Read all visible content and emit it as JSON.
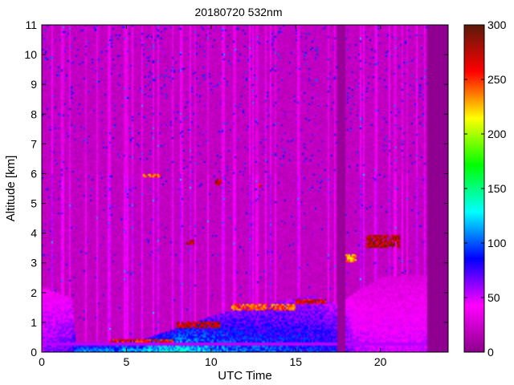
{
  "chart_data": {
    "type": "heatmap",
    "title": "20180720 532nm",
    "xlabel": "UTC Time",
    "ylabel": "Altitude [km]",
    "xlim": [
      0,
      24
    ],
    "ylim": [
      0,
      11
    ],
    "x_ticks": [
      0,
      5,
      10,
      15,
      20
    ],
    "y_ticks": [
      0,
      1,
      2,
      3,
      4,
      5,
      6,
      7,
      8,
      9,
      10,
      11
    ],
    "colorbar": {
      "range": [
        0,
        300
      ],
      "ticks": [
        0,
        50,
        100,
        150,
        200,
        250,
        300
      ],
      "colors": [
        "#8b008b",
        "#ff00ff",
        "#0000ff",
        "#00ffff",
        "#00ff00",
        "#ffff00",
        "#ff0000",
        "#5a1a0a"
      ]
    },
    "layers": {
      "background_value": 20,
      "surface_band_value": 55,
      "boundary_layer": [
        {
          "x": 0.0,
          "top": 2.2,
          "value": 60
        },
        {
          "x": 1.8,
          "top": 1.8,
          "value": 70
        },
        {
          "x": 2.0,
          "top": 0.3,
          "value": 110
        },
        {
          "x": 4.0,
          "top": 0.35,
          "value": 110
        },
        {
          "x": 6.0,
          "top": 0.45,
          "value": 120
        },
        {
          "x": 8.0,
          "top": 0.8,
          "value": 130
        },
        {
          "x": 10.0,
          "top": 1.2,
          "value": 110
        },
        {
          "x": 12.0,
          "top": 1.5,
          "value": 100
        },
        {
          "x": 14.0,
          "top": 1.7,
          "value": 95
        },
        {
          "x": 16.0,
          "top": 1.9,
          "value": 90
        },
        {
          "x": 17.5,
          "top": 1.6,
          "value": 85
        },
        {
          "x": 18.5,
          "top": 2.0,
          "value": 55
        },
        {
          "x": 20.0,
          "top": 2.5,
          "value": 50
        },
        {
          "x": 22.0,
          "top": 2.6,
          "value": 50
        },
        {
          "x": 22.8,
          "top": 2.6,
          "value": 50
        }
      ],
      "cloud_patches": [
        {
          "x0": 8.5,
          "x1": 9.0,
          "y0": 3.6,
          "y1": 3.8,
          "value": 300
        },
        {
          "x0": 10.2,
          "x1": 10.6,
          "y0": 5.6,
          "y1": 5.8,
          "value": 300
        },
        {
          "x0": 12.8,
          "x1": 13.0,
          "y0": 5.55,
          "y1": 5.65,
          "value": 280
        },
        {
          "x0": 6.0,
          "x1": 7.0,
          "y0": 5.9,
          "y1": 6.0,
          "value": 260
        },
        {
          "x0": 19.2,
          "x1": 21.2,
          "y0": 3.5,
          "y1": 3.95,
          "value": 300
        },
        {
          "x0": 17.8,
          "x1": 18.6,
          "y0": 3.0,
          "y1": 3.3,
          "value": 250
        },
        {
          "x0": 15.0,
          "x1": 16.8,
          "y0": 1.6,
          "y1": 1.8,
          "value": 290
        },
        {
          "x0": 11.2,
          "x1": 15.0,
          "y0": 1.4,
          "y1": 1.6,
          "value": 260
        },
        {
          "x0": 8.0,
          "x1": 10.5,
          "y0": 0.8,
          "y1": 1.0,
          "value": 300
        },
        {
          "x0": 4.0,
          "x1": 7.8,
          "y0": 0.3,
          "y1": 0.45,
          "value": 280
        }
      ],
      "gaps": [
        {
          "x0": 17.5,
          "x1": 17.9,
          "value": 0
        }
      ],
      "data_extent": [
        0,
        22.8
      ]
    }
  }
}
